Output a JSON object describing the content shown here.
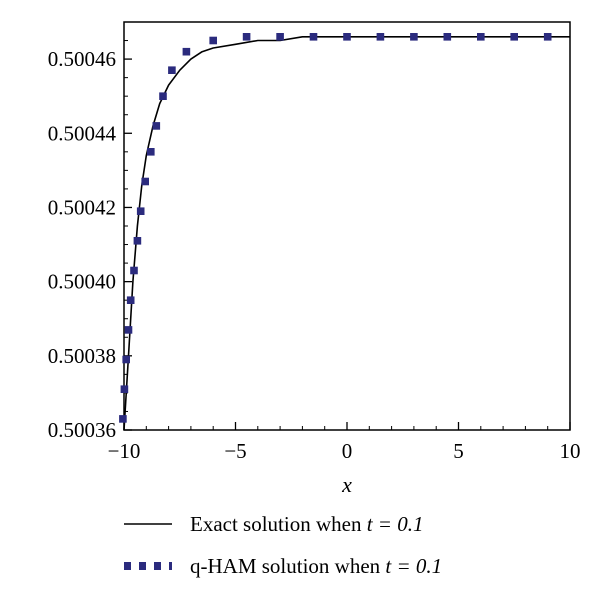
{
  "chart_data": {
    "type": "line",
    "title": "",
    "xlabel": "x",
    "ylabel": "",
    "xlim": [
      -10,
      10
    ],
    "ylim": [
      0.50036,
      0.50047
    ],
    "xticks": [
      -10,
      -5,
      0,
      5,
      10
    ],
    "xtick_labels": [
      "−10",
      "−5",
      "0",
      "5",
      "10"
    ],
    "yticks": [
      0.50036,
      0.50038,
      0.5004,
      0.50042,
      0.50044,
      0.50046
    ],
    "ytick_labels": [
      "0.50036",
      "0.50038",
      "0.50040",
      "0.50042",
      "0.50044",
      "0.50046"
    ],
    "grid": false,
    "legend_position": "bottom",
    "series": [
      {
        "name": "Exact solution when t = 0.1",
        "style": "solid",
        "color": "#000000",
        "x": [
          -10,
          -9.8,
          -9.6,
          -9.4,
          -9.2,
          -9.0,
          -8.7,
          -8.4,
          -8.0,
          -7.5,
          -7.0,
          -6.5,
          -6.0,
          -5.0,
          -4.0,
          -3.0,
          -2.0,
          0,
          5,
          10
        ],
        "y": [
          0.50036,
          0.50038,
          0.5004,
          0.500415,
          0.500426,
          0.500434,
          0.500442,
          0.500448,
          0.500453,
          0.500457,
          0.50046,
          0.500462,
          0.500463,
          0.500464,
          0.500465,
          0.500465,
          0.500466,
          0.500466,
          0.500466,
          0.500466
        ]
      },
      {
        "name": "q-HAM solution when t = 0.1",
        "style": "dotted",
        "color": "#2b2b7e",
        "x": [
          -10.05,
          -9.98,
          -9.9,
          -9.8,
          -9.7,
          -9.55,
          -9.4,
          -9.25,
          -9.05,
          -8.8,
          -8.55,
          -8.25,
          -7.85,
          -7.2,
          -6.0,
          -4.5,
          -3.0,
          -1.5,
          0,
          1.5,
          3.0,
          4.5,
          6.0,
          7.5,
          9.0
        ],
        "y": [
          0.500363,
          0.500371,
          0.500379,
          0.500387,
          0.500395,
          0.500403,
          0.500411,
          0.500419,
          0.500427,
          0.500435,
          0.500442,
          0.50045,
          0.500457,
          0.500462,
          0.500465,
          0.500466,
          0.500466,
          0.500466,
          0.500466,
          0.500466,
          0.500466,
          0.500466,
          0.500466,
          0.500466,
          0.500466
        ]
      }
    ],
    "legend": {
      "items": [
        {
          "prefix": "Exact solution when ",
          "var": "t = 0.1"
        },
        {
          "prefix": "q-HAM solution when ",
          "var": "t = 0.1"
        }
      ]
    }
  }
}
